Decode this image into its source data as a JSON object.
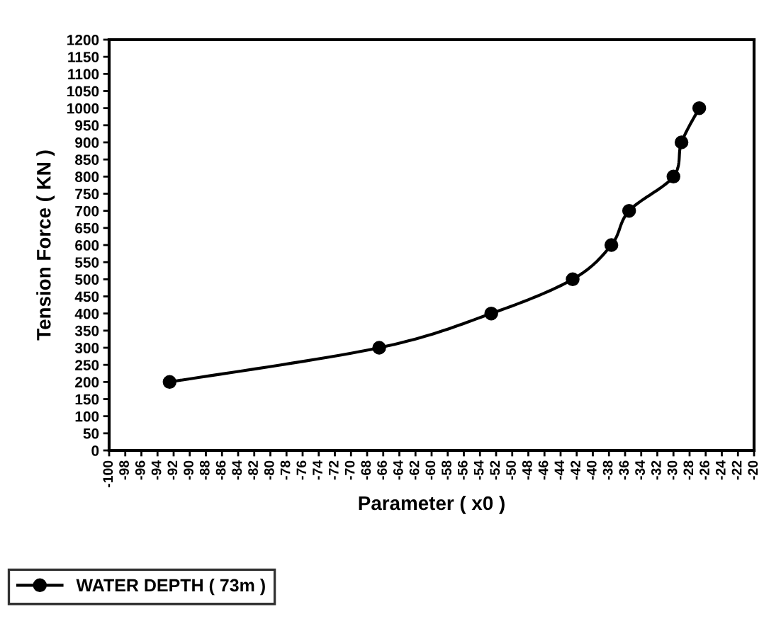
{
  "chart_data": {
    "type": "line",
    "xlabel": "Parameter ( x0 )",
    "ylabel": "Tension Force ( KN )",
    "series": [
      {
        "name": "WATER DEPTH ( 73m )",
        "color": "#000000",
        "x": [
          -92.5,
          -66.5,
          -52.6,
          -42.5,
          -37.7,
          -35.5,
          -30.0,
          -29.0,
          -26.8
        ],
        "values": [
          200,
          300,
          400,
          500,
          600,
          700,
          800,
          900,
          1000
        ]
      }
    ],
    "xlim": [
      -100,
      -20
    ],
    "xticks": [
      -100,
      -98,
      -96,
      -94,
      -92,
      -90,
      -88,
      -86,
      -84,
      -82,
      -80,
      -78,
      -76,
      -74,
      -72,
      -70,
      -68,
      -66,
      -64,
      -62,
      -60,
      -58,
      -56,
      -54,
      -52,
      -50,
      -48,
      -46,
      -44,
      -42,
      -40,
      -38,
      -36,
      -34,
      -32,
      -30,
      -28,
      -26,
      -24,
      -22,
      -20
    ],
    "ylim": [
      0,
      1200
    ],
    "yticks": [
      0,
      50,
      100,
      150,
      200,
      250,
      300,
      350,
      400,
      450,
      500,
      550,
      600,
      650,
      700,
      750,
      800,
      850,
      900,
      950,
      1000,
      1050,
      1100,
      1150,
      1200
    ],
    "grid": false,
    "legend": "bottom left",
    "marker": "circle",
    "line_style": "solid"
  }
}
